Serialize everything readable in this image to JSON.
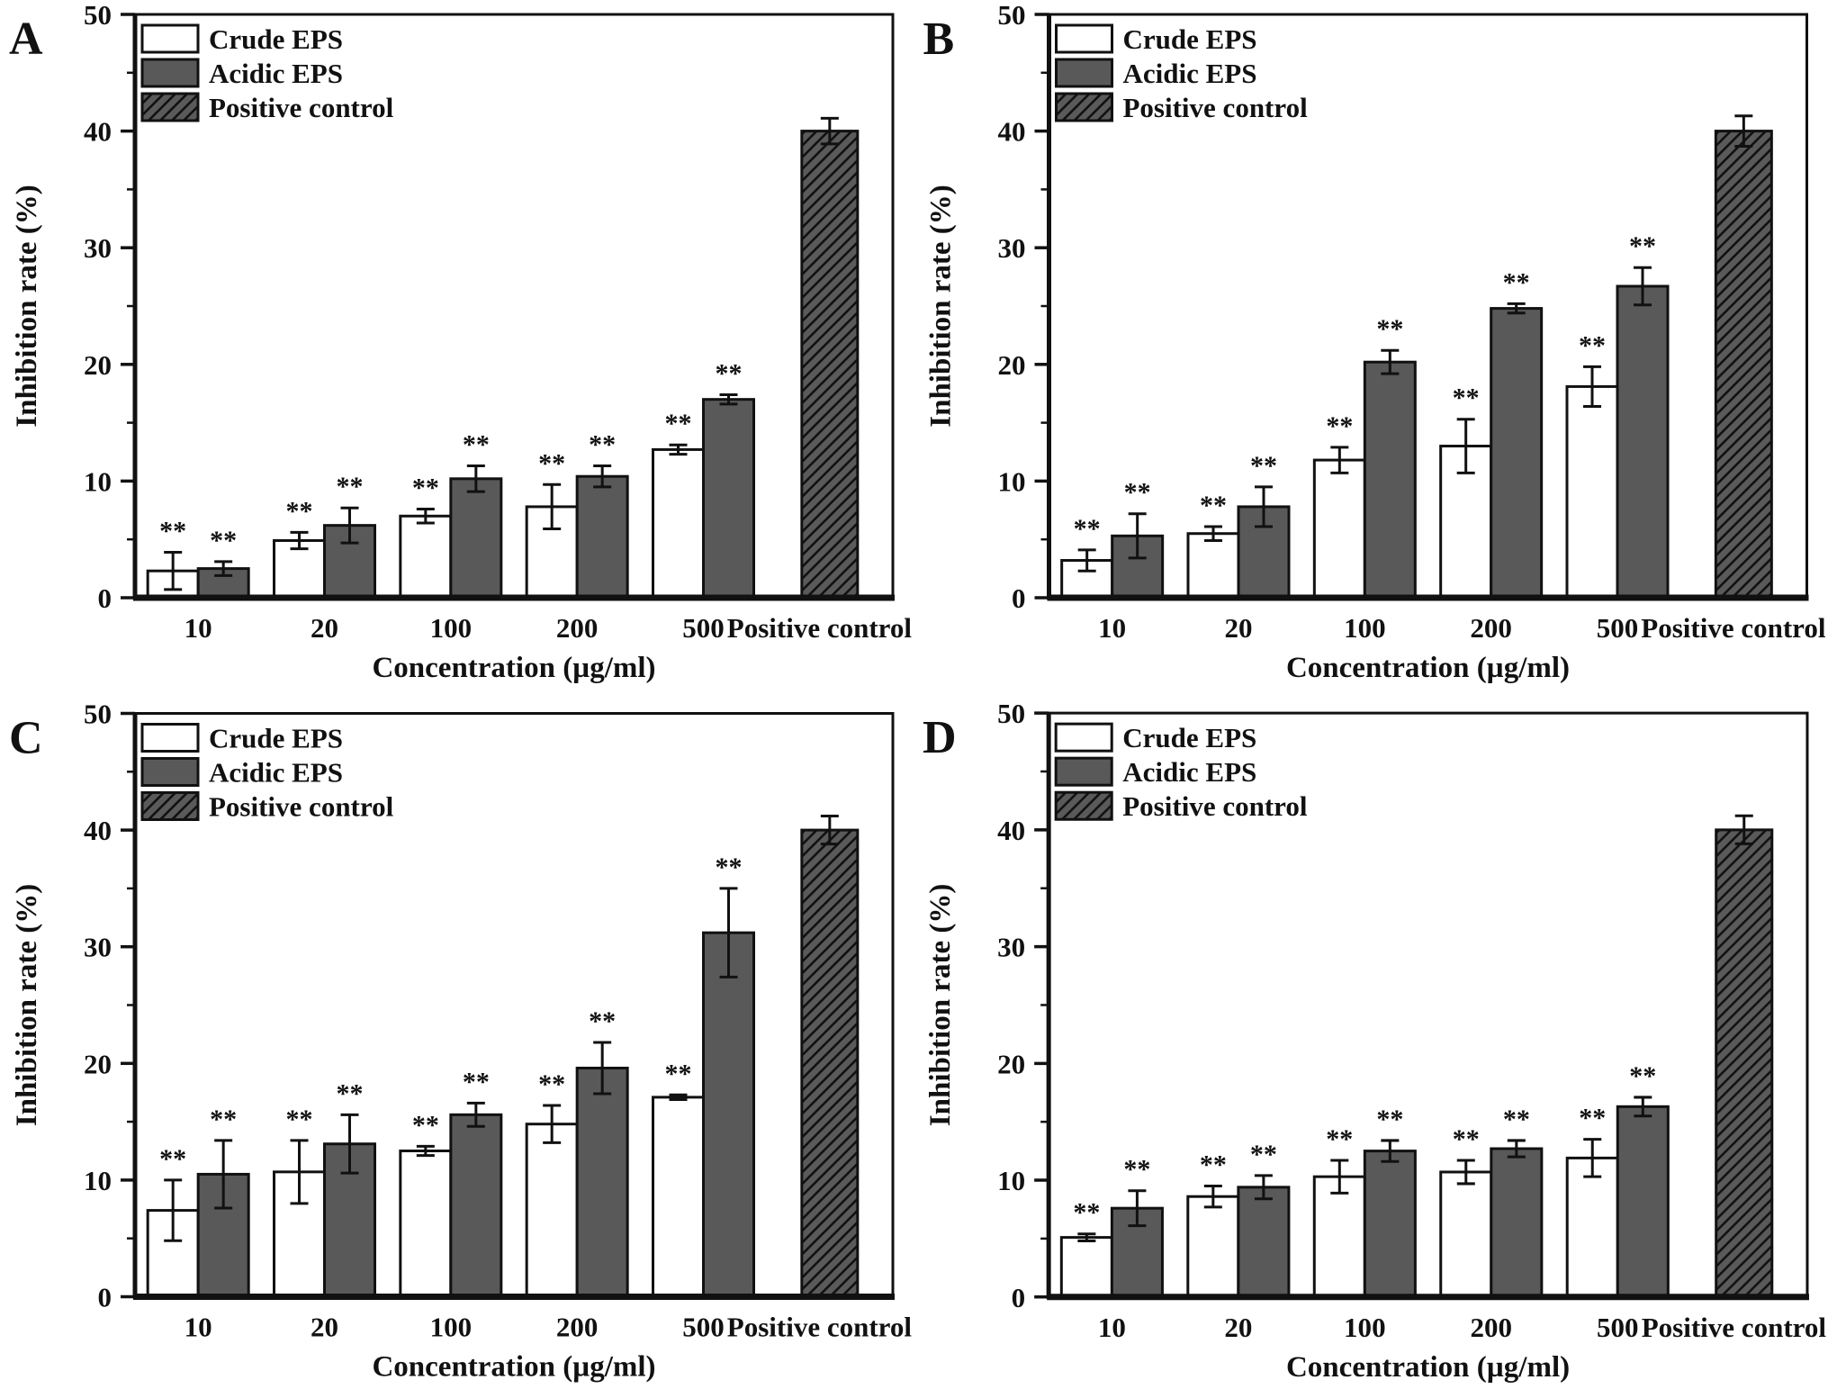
{
  "figure": {
    "description": "Four-panel bar chart figure (A, B, C, D) of inhibition rate versus concentration for Crude EPS, Acidic EPS and Positive control",
    "legend_labels": [
      "Crude EPS",
      "Acidic EPS",
      "Positive control"
    ],
    "colors": {
      "crude_fill": "#ffffff",
      "acidic_fill": "#595959",
      "hatch_fill": "#5a5a5a",
      "hatch_line": "#111111",
      "bar_stroke": "#111111",
      "axis_stroke": "#111111",
      "text": "#111111"
    }
  },
  "chart_data": [
    {
      "panel": "A",
      "type": "bar",
      "title": "",
      "xlabel": "Concentration (µg/ml)",
      "ylabel": "Inhibition rate (%)",
      "ylim": [
        0,
        50
      ],
      "yticks": [
        0,
        10,
        20,
        30,
        40,
        50
      ],
      "yminor_step": 5,
      "grid": false,
      "legend_position": "top-left-inside",
      "categories": [
        "10",
        "20",
        "100",
        "200",
        "500",
        "Positive control"
      ],
      "significance_marker": "**",
      "series": [
        {
          "name": "Crude EPS",
          "style": "white",
          "values": [
            2.3,
            4.9,
            7.0,
            7.8,
            12.7
          ],
          "errors": [
            1.6,
            0.7,
            0.6,
            1.9,
            0.4
          ],
          "marked": true
        },
        {
          "name": "Acidic EPS",
          "style": "solid",
          "values": [
            2.5,
            6.2,
            10.2,
            10.4,
            17.0
          ],
          "errors": [
            0.6,
            1.5,
            1.1,
            0.9,
            0.4
          ],
          "marked": true
        },
        {
          "name": "Positive control",
          "style": "hatched",
          "values": [
            40.0
          ],
          "errors": [
            1.1
          ],
          "marked": false
        }
      ]
    },
    {
      "panel": "B",
      "type": "bar",
      "title": "",
      "xlabel": "Concentration (µg/ml)",
      "ylabel": "Inhibition rate (%)",
      "ylim": [
        0,
        50
      ],
      "yticks": [
        0,
        10,
        20,
        30,
        40,
        50
      ],
      "yminor_step": 5,
      "grid": false,
      "legend_position": "top-left-inside",
      "categories": [
        "10",
        "20",
        "100",
        "200",
        "500",
        "Positive control"
      ],
      "significance_marker": "**",
      "series": [
        {
          "name": "Crude EPS",
          "style": "white",
          "values": [
            3.2,
            5.5,
            11.8,
            13.0,
            18.1
          ],
          "errors": [
            0.9,
            0.6,
            1.1,
            2.3,
            1.7
          ],
          "marked": true
        },
        {
          "name": "Acidic EPS",
          "style": "solid",
          "values": [
            5.3,
            7.8,
            20.2,
            24.8,
            26.7
          ],
          "errors": [
            1.9,
            1.7,
            1.0,
            0.4,
            1.6
          ],
          "marked": true
        },
        {
          "name": "Positive control",
          "style": "hatched",
          "values": [
            40.0
          ],
          "errors": [
            1.3
          ],
          "marked": false
        }
      ]
    },
    {
      "panel": "C",
      "type": "bar",
      "title": "",
      "xlabel": "Concentration (µg/ml)",
      "ylabel": "Inhibition rate (%)",
      "ylim": [
        0,
        50
      ],
      "yticks": [
        0,
        10,
        20,
        30,
        40,
        50
      ],
      "yminor_step": 5,
      "grid": false,
      "legend_position": "top-left-inside",
      "categories": [
        "10",
        "20",
        "100",
        "200",
        "500",
        "Positive control"
      ],
      "significance_marker": "**",
      "series": [
        {
          "name": "Crude EPS",
          "style": "white",
          "values": [
            7.4,
            10.7,
            12.5,
            14.8,
            17.1
          ],
          "errors": [
            2.6,
            2.7,
            0.4,
            1.6,
            0.2
          ],
          "marked": true
        },
        {
          "name": "Acidic EPS",
          "style": "solid",
          "values": [
            10.5,
            13.1,
            15.6,
            19.6,
            31.2
          ],
          "errors": [
            2.9,
            2.5,
            1.0,
            2.2,
            3.8
          ],
          "marked": true
        },
        {
          "name": "Positive control",
          "style": "hatched",
          "values": [
            40.0
          ],
          "errors": [
            1.2
          ],
          "marked": false
        }
      ]
    },
    {
      "panel": "D",
      "type": "bar",
      "title": "",
      "xlabel": "Concentration (µg/ml)",
      "ylabel": "Inhibition rate (%)",
      "ylim": [
        0,
        50
      ],
      "yticks": [
        0,
        10,
        20,
        30,
        40,
        50
      ],
      "yminor_step": 5,
      "grid": false,
      "legend_position": "top-left-inside",
      "categories": [
        "10",
        "20",
        "100",
        "200",
        "500",
        "Positive control"
      ],
      "significance_marker": "**",
      "series": [
        {
          "name": "Crude EPS",
          "style": "white",
          "values": [
            5.1,
            8.6,
            10.3,
            10.7,
            11.9
          ],
          "errors": [
            0.3,
            0.9,
            1.4,
            1.0,
            1.6
          ],
          "marked": true
        },
        {
          "name": "Acidic EPS",
          "style": "solid",
          "values": [
            7.6,
            9.4,
            12.5,
            12.7,
            16.3
          ],
          "errors": [
            1.5,
            1.0,
            0.9,
            0.7,
            0.8
          ],
          "marked": true
        },
        {
          "name": "Positive control",
          "style": "hatched",
          "values": [
            40.0
          ],
          "errors": [
            1.2
          ],
          "marked": false
        }
      ]
    }
  ]
}
